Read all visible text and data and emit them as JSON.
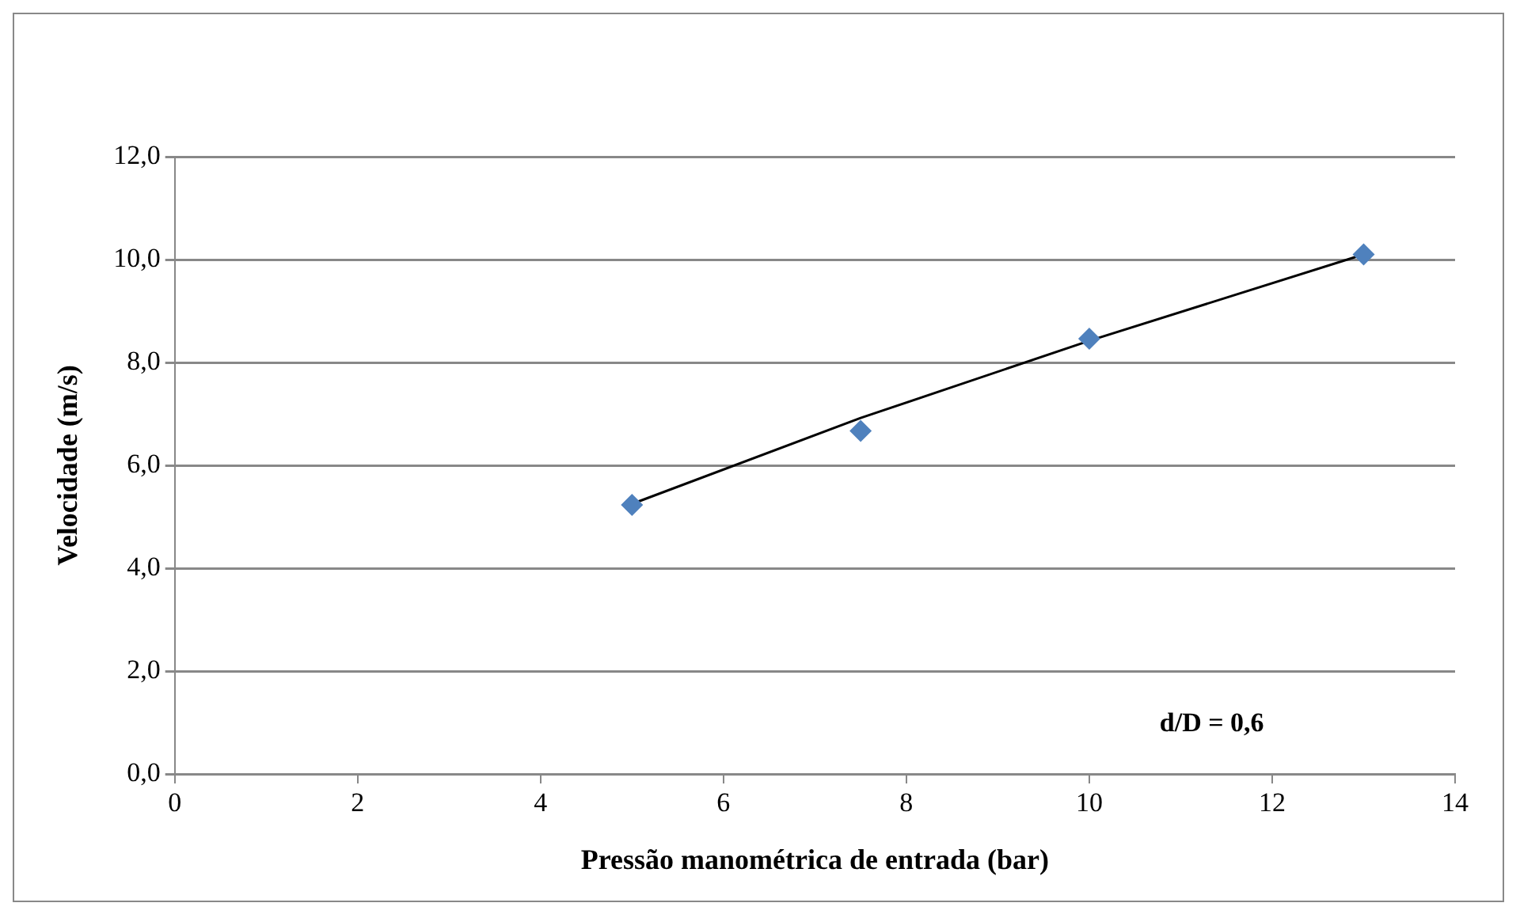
{
  "chart_data": {
    "type": "scatter",
    "xlabel": "Pressão manométrica de entrada (bar)",
    "ylabel": "Velocidade (m/s)",
    "series": [
      {
        "type": "scatter",
        "color": "#4f81bd",
        "marker": "diamond",
        "x": [
          5,
          7.5,
          10,
          13
        ],
        "values": [
          5.23,
          6.67,
          8.46,
          10.1
        ]
      },
      {
        "type": "line",
        "color": "#000000",
        "marker": "none",
        "line_style": "solid",
        "x": [
          5,
          7.5,
          10,
          13
        ],
        "values": [
          5.25,
          6.92,
          8.42,
          10.1
        ]
      }
    ],
    "xlim": [
      0,
      14
    ],
    "xticks": [
      0,
      2,
      4,
      6,
      8,
      10,
      12,
      14
    ],
    "ylim": [
      0,
      12
    ],
    "yticks": [
      {
        "value": 0,
        "label": "0,0"
      },
      {
        "value": 2,
        "label": "2,0"
      },
      {
        "value": 4,
        "label": "4,0"
      },
      {
        "value": 6,
        "label": "6,0"
      },
      {
        "value": 8,
        "label": "8,0"
      },
      {
        "value": 10,
        "label": "10,0"
      },
      {
        "value": 12,
        "label": "12,0"
      }
    ],
    "grid": "y",
    "legend": false,
    "annotations": [
      "d/D = 0,6"
    ]
  }
}
